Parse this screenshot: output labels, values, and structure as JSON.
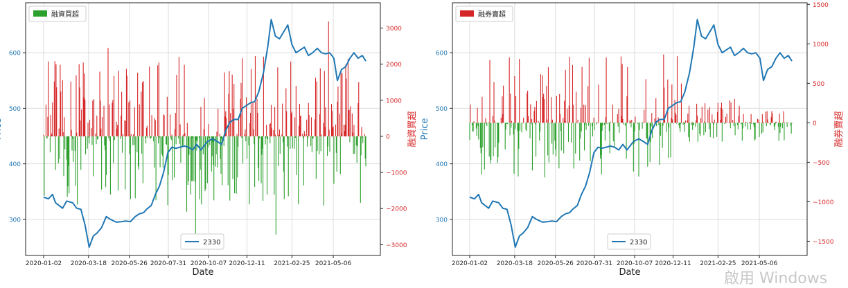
{
  "chart_data": [
    {
      "type": "bar",
      "subtype": "dual-axis line + bar",
      "xlabel": "Date",
      "x_ticks": [
        "2020-01-02",
        "2020-03-18",
        "2020-05-26",
        "2020-07-31",
        "2020-10-07",
        "2020-12-11",
        "2021-02-25",
        "2021-05-06"
      ],
      "ylabel_left": "Price",
      "ylabel_right": "融資買超",
      "ylim_left": [
        235,
        690
      ],
      "ylim_right": [
        -3300,
        3700
      ],
      "y_ticks_left": [
        300,
        400,
        500,
        600
      ],
      "y_ticks_right": [
        -3000,
        -2000,
        -1000,
        0,
        1000,
        2000,
        3000
      ],
      "grid": true,
      "legend_top": {
        "label": "融資買超",
        "color": "#2ca02c",
        "placement": "top-left"
      },
      "legend_bottom": {
        "label": "2330",
        "color": "#1f77b4",
        "placement": "bottom-center"
      },
      "bar_colors": {
        "positive": "#d62728",
        "negative": "#2ca02c"
      },
      "price_series": {
        "name": "2330",
        "color": "#1f77b4",
        "points": [
          [
            "2020-01-02",
            340
          ],
          [
            "2020-01-10",
            337
          ],
          [
            "2020-01-17",
            345
          ],
          [
            "2020-01-22",
            330
          ],
          [
            "2020-02-03",
            320
          ],
          [
            "2020-02-10",
            333
          ],
          [
            "2020-02-20",
            330
          ],
          [
            "2020-02-27",
            320
          ],
          [
            "2020-03-05",
            318
          ],
          [
            "2020-03-12",
            290
          ],
          [
            "2020-03-19",
            250
          ],
          [
            "2020-03-26",
            270
          ],
          [
            "2020-04-01",
            275
          ],
          [
            "2020-04-09",
            285
          ],
          [
            "2020-04-17",
            305
          ],
          [
            "2020-04-24",
            300
          ],
          [
            "2020-05-04",
            295
          ],
          [
            "2020-05-13",
            296
          ],
          [
            "2020-05-20",
            297
          ],
          [
            "2020-05-28",
            296
          ],
          [
            "2020-06-05",
            305
          ],
          [
            "2020-06-12",
            310
          ],
          [
            "2020-06-19",
            312
          ],
          [
            "2020-06-24",
            318
          ],
          [
            "2020-07-02",
            325
          ],
          [
            "2020-07-09",
            345
          ],
          [
            "2020-07-16",
            360
          ],
          [
            "2020-07-23",
            385
          ],
          [
            "2020-07-30",
            420
          ],
          [
            "2020-08-06",
            430
          ],
          [
            "2020-08-13",
            428
          ],
          [
            "2020-08-20",
            430
          ],
          [
            "2020-08-27",
            432
          ],
          [
            "2020-09-03",
            430
          ],
          [
            "2020-09-10",
            425
          ],
          [
            "2020-09-17",
            435
          ],
          [
            "2020-09-24",
            425
          ],
          [
            "2020-10-05",
            440
          ],
          [
            "2020-10-14",
            445
          ],
          [
            "2020-10-22",
            440
          ],
          [
            "2020-10-29",
            435
          ],
          [
            "2020-11-05",
            460
          ],
          [
            "2020-11-12",
            475
          ],
          [
            "2020-11-19",
            480
          ],
          [
            "2020-11-26",
            480
          ],
          [
            "2020-12-03",
            500
          ],
          [
            "2020-12-10",
            505
          ],
          [
            "2020-12-17",
            510
          ],
          [
            "2020-12-24",
            512
          ],
          [
            "2020-12-31",
            530
          ],
          [
            "2021-01-08",
            565
          ],
          [
            "2021-01-15",
            610
          ],
          [
            "2021-01-21",
            660
          ],
          [
            "2021-01-28",
            630
          ],
          [
            "2021-02-04",
            625
          ],
          [
            "2021-02-18",
            650
          ],
          [
            "2021-02-25",
            615
          ],
          [
            "2021-03-04",
            600
          ],
          [
            "2021-03-11",
            605
          ],
          [
            "2021-03-18",
            610
          ],
          [
            "2021-03-25",
            595
          ],
          [
            "2021-04-01",
            600
          ],
          [
            "2021-04-09",
            608
          ],
          [
            "2021-04-16",
            600
          ],
          [
            "2021-04-23",
            598
          ],
          [
            "2021-04-30",
            600
          ],
          [
            "2021-05-07",
            590
          ],
          [
            "2021-05-13",
            550
          ],
          [
            "2021-05-20",
            570
          ],
          [
            "2021-05-27",
            575
          ],
          [
            "2021-06-03",
            590
          ],
          [
            "2021-06-10",
            600
          ],
          [
            "2021-06-17",
            590
          ],
          [
            "2021-06-24",
            595
          ],
          [
            "2021-06-30",
            585
          ]
        ]
      }
    },
    {
      "type": "bar",
      "subtype": "dual-axis line + bar",
      "xlabel": "Date",
      "x_ticks": [
        "2020-01-02",
        "2020-03-18",
        "2020-05-26",
        "2020-07-31",
        "2020-10-07",
        "2020-12-11",
        "2021-02-25",
        "2021-05-06"
      ],
      "ylabel_left": "Price",
      "ylabel_right": "融券賣超",
      "ylim_left": [
        235,
        690
      ],
      "ylim_right": [
        -1680,
        1520
      ],
      "y_ticks_left": [
        300,
        400,
        500,
        600
      ],
      "y_ticks_right": [
        -1500,
        -1000,
        -500,
        0,
        500,
        1000,
        1500
      ],
      "grid": true,
      "legend_top": {
        "label": "融券賣超",
        "color": "#d62728",
        "placement": "top-left"
      },
      "legend_bottom": {
        "label": "2330",
        "color": "#1f77b4",
        "placement": "bottom-center"
      },
      "bar_colors": {
        "positive": "#d62728",
        "negative": "#2ca02c"
      },
      "price_series": {
        "name": "2330",
        "color": "#1f77b4",
        "same_as_left_chart": true
      }
    }
  ],
  "watermark": "啟用 Windows"
}
